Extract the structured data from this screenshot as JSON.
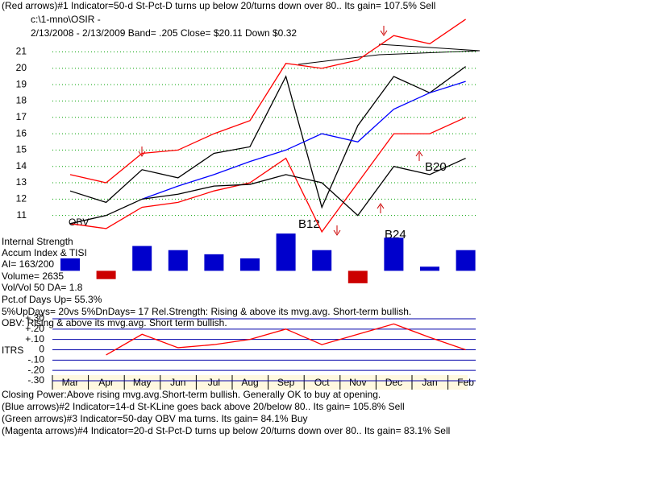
{
  "header": {
    "line1": "(Red arrows)#1 Indicator=50-d St-Pct-D turns up below 20/turns down over 80.. Its gain= 107.5% Sell",
    "line2": "c:\\1-mno\\OSIR  -",
    "line3": "2/13/2008 - 2/13/2009  Band= .205  Close= $20.11  Down $0.32"
  },
  "panel_texts": [
    "Internal Strength",
    "Accum Index & TISI",
    "AI= 163/200",
    "Volume= 2635",
    "Vol/Vol 50 DA= 1.8",
    "Pct.of Days Up= 55.3%",
    "5%UpDays= 20vs 5%DnDays= 17   Rel.Strength: Rising & above its mvg.avg. Short-term bullish.",
    "OBV: Rising & above its mvg.avg. Short term bullish."
  ],
  "annotations": [
    "B12",
    "B24",
    "B20"
  ],
  "footer": [
    "Closing Power:Above rising mvg.avg.Short-term bullish. Generally OK to buy at opening.",
    "(Blue arrows)#2 Indicator=14-d St-KLine goes back above 20/below 80.. Its gain= 105.8% Sell",
    "(Green arrows)#3 Indicator=50-day OBV ma turns. Its gain= 84.1% Buy",
    "(Magenta arrows)#4 Indicator=20-d St-Pct-D turns up below 20/turns down over 80.. Its gain= 83.1% Sell"
  ],
  "chart_data": [
    {
      "type": "line",
      "categories": [
        "Mar",
        "Apr",
        "May",
        "Jun",
        "Jul",
        "Aug",
        "Sep",
        "Oct",
        "Nov",
        "Dec",
        "Jan",
        "Feb"
      ],
      "ylim": [
        9.9,
        22.7
      ],
      "yticks": [
        11,
        12,
        13,
        14,
        15,
        16,
        17,
        18,
        19,
        20,
        21
      ],
      "grid": true,
      "grid_color": "#00a000",
      "series": [
        {
          "color": "#000000",
          "values": [
            12.5,
            11.8,
            13.8,
            13.3,
            14.8,
            15.2,
            19.5,
            11.5,
            16.5,
            19.5,
            18.5,
            20.11
          ]
        },
        {
          "color": "#ff0000",
          "values": [
            13.5,
            13.0,
            14.8,
            15.0,
            16.0,
            16.8,
            20.3,
            20.0,
            20.5,
            22.0,
            21.5,
            23.0
          ]
        },
        {
          "color": "#ff0000",
          "values": [
            10.5,
            10.2,
            11.5,
            11.8,
            12.5,
            13.0,
            14.5,
            10.0,
            13.0,
            16.0,
            16.0,
            17.0
          ]
        },
        {
          "color": "#0000ff",
          "values": [
            null,
            null,
            12.0,
            12.8,
            13.5,
            14.3,
            15.0,
            16.0,
            15.5,
            17.5,
            18.5,
            19.2
          ]
        },
        {
          "name": "OBV",
          "color": "#000000",
          "values": [
            10.5,
            11.0,
            12.0,
            12.3,
            12.8,
            12.9,
            13.5,
            13.0,
            11.0,
            14.0,
            13.5,
            14.5
          ]
        }
      ]
    },
    {
      "type": "bar",
      "ylim": [
        -0.4,
        1
      ],
      "color": "#0000cc",
      "neg_color": "#cc0000",
      "values": [
        0.3,
        -0.2,
        0.6,
        0.5,
        0.4,
        0.3,
        0.9,
        0.5,
        -0.3,
        0.8,
        0.1,
        0.5
      ]
    },
    {
      "type": "line",
      "ylim": [
        -0.3,
        0.3
      ],
      "grid": true,
      "grid_color": "#0000aa",
      "yticks": [
        {
          "value": 0.3,
          "label": "+.30"
        },
        {
          "value": 0.2,
          "label": "+.20"
        },
        {
          "value": 0.1,
          "label": "+.10"
        },
        0,
        {
          "value": -0.1,
          "label": "-.10"
        },
        {
          "value": -0.2,
          "label": "-.20"
        },
        {
          "value": -0.3,
          "label": "-.30"
        }
      ],
      "series": [
        {
          "name": "ITRS",
          "color": "#ff0000",
          "values": [
            null,
            -0.05,
            0.15,
            0.02,
            0.05,
            0.1,
            0.2,
            0.05,
            0.15,
            0.25,
            0.12,
            0.0
          ]
        }
      ]
    }
  ]
}
